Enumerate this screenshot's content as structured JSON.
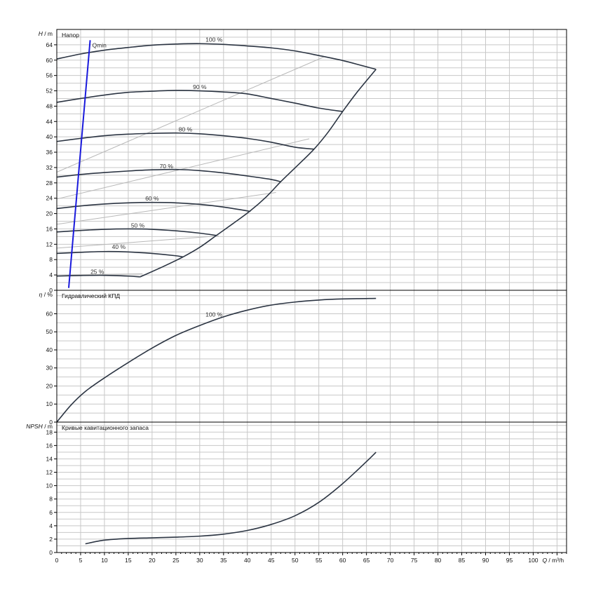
{
  "chart_data": [
    {
      "type": "line",
      "panel": "head",
      "title": "Напор",
      "ylabel_sym": "H",
      "ylabel_unit": "m",
      "ylim": [
        0,
        68
      ],
      "yticks": [
        0,
        4,
        8,
        12,
        16,
        20,
        24,
        28,
        32,
        36,
        40,
        44,
        48,
        52,
        56,
        60,
        64
      ],
      "y_grid_step": 2,
      "series": [
        {
          "name": "100 %",
          "label_at": [
            33,
            64.8
          ],
          "points": [
            [
              0,
              60.3
            ],
            [
              5,
              61.6
            ],
            [
              10,
              62.6
            ],
            [
              15,
              63.3
            ],
            [
              20,
              63.9
            ],
            [
              25,
              64.2
            ],
            [
              30,
              64.3
            ],
            [
              35,
              64.1
            ],
            [
              40,
              63.7
            ],
            [
              45,
              63.2
            ],
            [
              50,
              62.4
            ],
            [
              55,
              61.2
            ],
            [
              60,
              59.9
            ],
            [
              64,
              58.6
            ],
            [
              67,
              57.6
            ]
          ]
        },
        {
          "name": "90 %",
          "label_at": [
            30,
            52.5
          ],
          "points": [
            [
              0,
              49.0
            ],
            [
              5,
              50.0
            ],
            [
              10,
              50.9
            ],
            [
              15,
              51.6
            ],
            [
              20,
              51.9
            ],
            [
              25,
              52.1
            ],
            [
              30,
              52.0
            ],
            [
              35,
              51.7
            ],
            [
              40,
              51.2
            ],
            [
              45,
              50.0
            ],
            [
              50,
              48.8
            ],
            [
              55,
              47.5
            ],
            [
              60,
              46.6
            ]
          ]
        },
        {
          "name": "80 %",
          "label_at": [
            27,
            41.4
          ],
          "points": [
            [
              0,
              38.8
            ],
            [
              5,
              39.6
            ],
            [
              10,
              40.3
            ],
            [
              15,
              40.7
            ],
            [
              20,
              40.9
            ],
            [
              25,
              41.0
            ],
            [
              30,
              40.8
            ],
            [
              35,
              40.3
            ],
            [
              40,
              39.6
            ],
            [
              45,
              38.6
            ],
            [
              50,
              37.3
            ],
            [
              54,
              36.8
            ]
          ]
        },
        {
          "name": "70 %",
          "label_at": [
            23,
            31.8
          ],
          "points": [
            [
              0,
              29.5
            ],
            [
              5,
              30.2
            ],
            [
              10,
              30.7
            ],
            [
              15,
              31.1
            ],
            [
              20,
              31.4
            ],
            [
              25,
              31.5
            ],
            [
              30,
              31.2
            ],
            [
              35,
              30.6
            ],
            [
              40,
              29.8
            ],
            [
              45,
              28.9
            ],
            [
              47,
              28.3
            ]
          ]
        },
        {
          "name": "60 %",
          "label_at": [
            20,
            23.4
          ],
          "points": [
            [
              0,
              21.3
            ],
            [
              5,
              22.0
            ],
            [
              10,
              22.5
            ],
            [
              15,
              22.8
            ],
            [
              20,
              22.9
            ],
            [
              25,
              22.8
            ],
            [
              30,
              22.4
            ],
            [
              35,
              21.7
            ],
            [
              40,
              20.7
            ],
            [
              40.5,
              20.6
            ]
          ]
        },
        {
          "name": "50 %",
          "label_at": [
            17,
            16.4
          ],
          "points": [
            [
              0,
              15.2
            ],
            [
              5,
              15.6
            ],
            [
              10,
              15.9
            ],
            [
              15,
              16.0
            ],
            [
              20,
              15.9
            ],
            [
              25,
              15.5
            ],
            [
              30,
              14.9
            ],
            [
              33.5,
              14.3
            ]
          ]
        },
        {
          "name": "40 %",
          "label_at": [
            13,
            10.8
          ],
          "points": [
            [
              0,
              9.6
            ],
            [
              5,
              9.9
            ],
            [
              10,
              10.1
            ],
            [
              15,
              10.0
            ],
            [
              20,
              9.6
            ],
            [
              25,
              9.0
            ],
            [
              26.5,
              8.7
            ]
          ]
        },
        {
          "name": "25 %",
          "label_at": [
            8.5,
            4.3
          ],
          "points": [
            [
              0,
              3.7
            ],
            [
              5,
              3.85
            ],
            [
              10,
              3.9
            ],
            [
              15,
              3.7
            ],
            [
              17.5,
              3.5
            ]
          ]
        }
      ],
      "envelope": [
        [
          17.5,
          3.5
        ],
        [
          22,
          6.0
        ],
        [
          26.5,
          8.7
        ],
        [
          30,
          11.2
        ],
        [
          33.5,
          14.3
        ],
        [
          37,
          17.4
        ],
        [
          40.5,
          20.6
        ],
        [
          44,
          24.4
        ],
        [
          47,
          28.3
        ],
        [
          50.5,
          32.5
        ],
        [
          54,
          36.8
        ],
        [
          57,
          41.3
        ],
        [
          60,
          46.6
        ],
        [
          63,
          51.6
        ],
        [
          67,
          57.6
        ]
      ],
      "efficiency_lines": [
        [
          [
            0,
            30.8
          ],
          [
            56,
            60.8
          ]
        ],
        [
          [
            0,
            23.8
          ],
          [
            53,
            39.5
          ]
        ],
        [
          [
            0,
            17.2
          ],
          [
            46,
            25.5
          ]
        ],
        [
          [
            0,
            11.0
          ],
          [
            34,
            14.2
          ]
        ],
        [
          [
            0,
            4.0
          ],
          [
            18,
            4.3
          ]
        ]
      ],
      "qmin": {
        "label": "Qmin",
        "points": [
          [
            2.5,
            0.6
          ],
          [
            7,
            65.2
          ]
        ]
      }
    },
    {
      "type": "line",
      "panel": "efficiency",
      "title": "Гидравлический КПД",
      "ylabel_sym": "η",
      "ylabel_unit": "%",
      "ylim": [
        0,
        73
      ],
      "yticks": [
        0,
        10,
        20,
        30,
        40,
        50,
        60
      ],
      "y_grid_step": 5,
      "series": [
        {
          "name": "100 %",
          "label_at": [
            33,
            58.5
          ],
          "points": [
            [
              0,
              0
            ],
            [
              3,
              9.5
            ],
            [
              6,
              17.0
            ],
            [
              10,
              24.5
            ],
            [
              15,
              33.0
            ],
            [
              20,
              41.0
            ],
            [
              25,
              48.0
            ],
            [
              30,
              53.5
            ],
            [
              35,
              58.3
            ],
            [
              40,
              62.0
            ],
            [
              45,
              64.8
            ],
            [
              50,
              66.5
            ],
            [
              55,
              67.6
            ],
            [
              60,
              68.2
            ],
            [
              67,
              68.5
            ]
          ]
        }
      ]
    },
    {
      "type": "line",
      "panel": "npsh",
      "title": "Кривые кавитационного запаса",
      "ylabel_sym": "NPSH",
      "ylabel_unit": "m",
      "ylim": [
        0,
        19.5
      ],
      "yticks": [
        0,
        2,
        4,
        6,
        8,
        10,
        12,
        14,
        16,
        18
      ],
      "y_grid_step": 1,
      "series": [
        {
          "name": "",
          "points": [
            [
              6,
              1.3
            ],
            [
              10,
              1.85
            ],
            [
              15,
              2.1
            ],
            [
              20,
              2.2
            ],
            [
              25,
              2.3
            ],
            [
              30,
              2.45
            ],
            [
              35,
              2.75
            ],
            [
              40,
              3.3
            ],
            [
              45,
              4.2
            ],
            [
              50,
              5.5
            ],
            [
              55,
              7.5
            ],
            [
              60,
              10.3
            ],
            [
              65,
              13.6
            ],
            [
              67,
              15.0
            ]
          ]
        }
      ]
    }
  ],
  "x_axis": {
    "sym": "Q",
    "unit": "m³/h",
    "xlim": [
      0,
      107
    ],
    "ticks": [
      0,
      5,
      10,
      15,
      20,
      25,
      30,
      35,
      40,
      45,
      50,
      55,
      60,
      65,
      70,
      75,
      80,
      85,
      90,
      95,
      100
    ],
    "grid_step": 5
  },
  "colors": {
    "curve": "#2b3442",
    "qmin": "#1a1adc",
    "efficiency_line": "#b8b8b8",
    "grid": "#c8c8c8",
    "frame": "#000000"
  }
}
